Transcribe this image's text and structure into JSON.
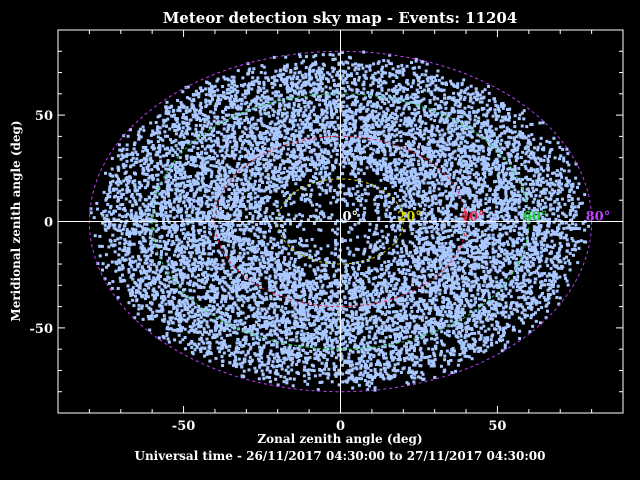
{
  "chart_data": {
    "type": "scatter",
    "title": "Meteor detection sky map - Events: 11204",
    "event_count": 11204,
    "xlabel": "Zonal zenith angle (deg)",
    "ylabel": "Meridional zenith angle (deg)",
    "footer": "Universal time - 26/11/2017 04:30:00 to 27/11/2017 04:30:00",
    "xlim": [
      -90,
      90
    ],
    "ylim": [
      -90,
      90
    ],
    "x_ticks": [
      -50,
      0,
      50
    ],
    "y_ticks": [
      -50,
      0,
      50
    ],
    "grid": false,
    "point_color": "#a9c8ff",
    "background": "#000000",
    "circles": [
      {
        "angle": 0,
        "label": "0°",
        "color": "#ffffff",
        "dashed": false
      },
      {
        "angle": 20,
        "label": "20°",
        "color": "#d4d400",
        "dashed": true
      },
      {
        "angle": 40,
        "label": "40°",
        "color": "#e8203c",
        "dashed": true
      },
      {
        "angle": 60,
        "label": "60°",
        "color": "#22c83a",
        "dashed": true
      },
      {
        "angle": 80,
        "label": "80°",
        "color": "#c040ff",
        "dashed": true
      }
    ],
    "density": {
      "max_zenith_angle": 80,
      "peak_zenith_angle": 40,
      "sparse_center_below_deg": 25
    }
  }
}
